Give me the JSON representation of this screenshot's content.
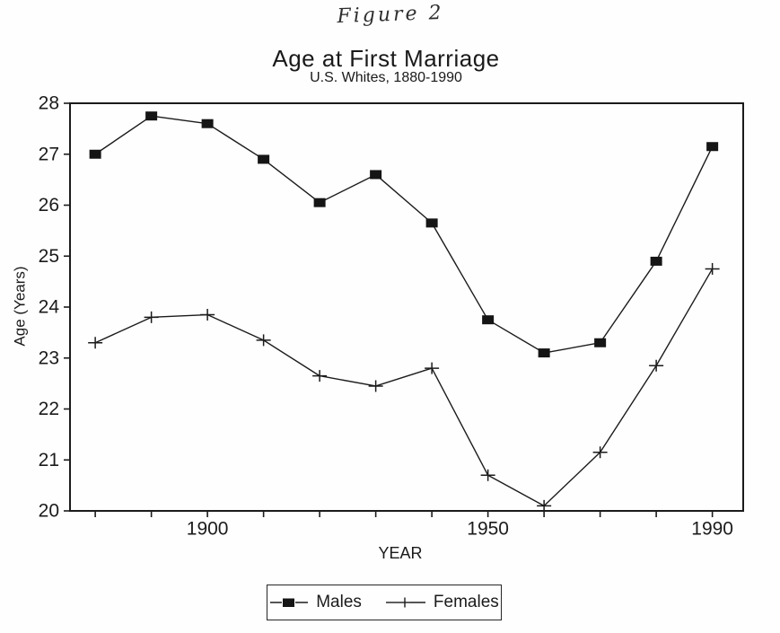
{
  "page": {
    "figure_label": "Figure 2"
  },
  "chart_data": {
    "type": "line",
    "title": "Age at First Marriage",
    "subtitle": "U.S. Whites, 1880-1990",
    "xlabel": "YEAR",
    "ylabel": "Age (Years)",
    "x": [
      1880,
      1890,
      1900,
      1910,
      1920,
      1930,
      1940,
      1950,
      1960,
      1970,
      1980,
      1990
    ],
    "series": [
      {
        "name": "Males",
        "marker": "square",
        "values": [
          27.0,
          27.75,
          27.6,
          26.9,
          26.05,
          26.6,
          25.65,
          23.75,
          23.1,
          23.3,
          24.9,
          27.15
        ]
      },
      {
        "name": "Females",
        "marker": "plus",
        "values": [
          23.3,
          23.8,
          23.85,
          23.35,
          22.65,
          22.45,
          22.8,
          20.7,
          20.1,
          21.15,
          22.85,
          24.75
        ]
      }
    ],
    "xlim": [
      1875.5,
      1995.5
    ],
    "ylim": [
      20,
      28
    ],
    "y_ticks": [
      20,
      21,
      22,
      23,
      24,
      25,
      26,
      27,
      28
    ],
    "x_minor_ticks": [
      1880,
      1890,
      1900,
      1910,
      1920,
      1930,
      1940,
      1950,
      1960,
      1970,
      1980,
      1990
    ],
    "x_major_ticks": [
      1900,
      1950,
      1990
    ],
    "grid": false,
    "legend_position": "bottom",
    "ink_color": "#1b1b1b"
  }
}
